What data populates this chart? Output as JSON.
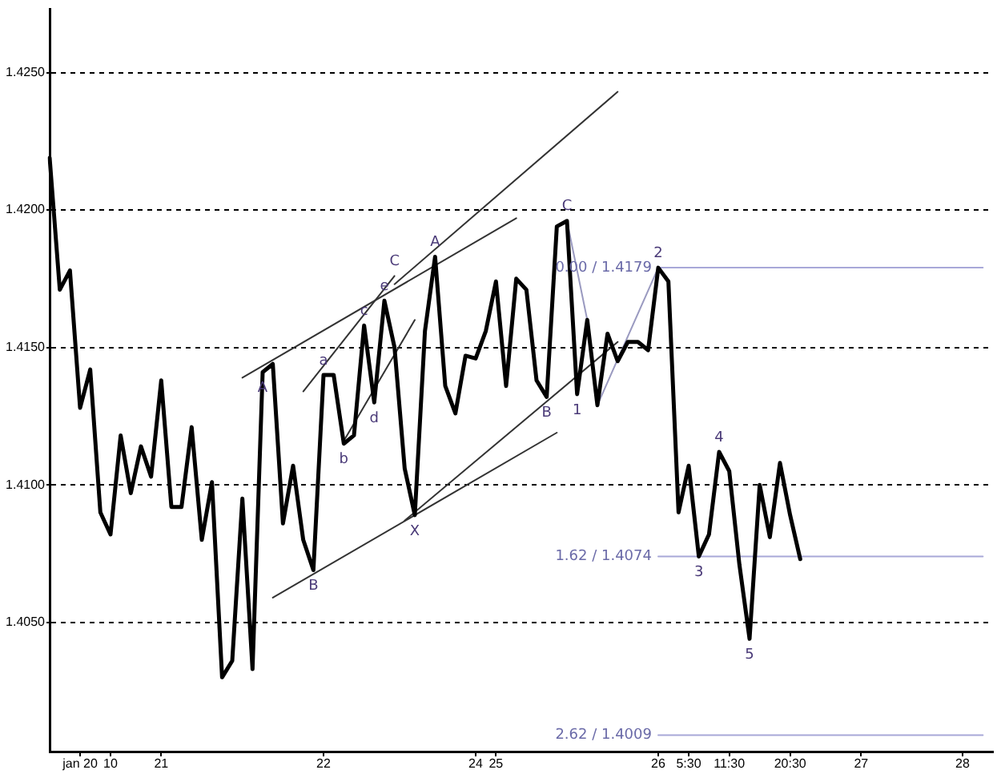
{
  "chart_data": {
    "type": "line",
    "categories": [
      null,
      null,
      null,
      "jan 20",
      null,
      null,
      "10",
      null,
      null,
      null,
      null,
      "21",
      null,
      null,
      null,
      null,
      null,
      null,
      null,
      null,
      null,
      null,
      null,
      null,
      null,
      null,
      null,
      "22",
      null,
      null,
      null,
      null,
      null,
      null,
      null,
      null,
      null,
      null,
      null,
      null,
      null,
      null,
      "24",
      null,
      "25",
      null,
      null,
      null,
      null,
      null,
      null,
      null,
      null,
      null,
      null,
      null,
      null,
      null,
      null,
      null,
      "26",
      null,
      null,
      "5:30",
      null,
      null,
      null,
      "11:30",
      null,
      null,
      null,
      null,
      null,
      "20:30",
      null,
      null,
      null,
      null,
      null,
      null,
      "27",
      null,
      null,
      null,
      null,
      null,
      null,
      null,
      null,
      null,
      "28",
      null,
      null,
      null
    ],
    "series": [
      {
        "color": "#000000",
        "values": [
          1.4219,
          1.4171,
          1.4178,
          1.4128,
          1.4142,
          1.409,
          1.4082,
          1.4118,
          1.4097,
          1.4114,
          1.4103,
          1.4138,
          1.4092,
          1.4092,
          1.4121,
          1.408,
          1.4101,
          1.403,
          1.4036,
          1.4095,
          1.4033,
          1.4141,
          1.4144,
          1.4086,
          1.4107,
          1.408,
          1.4069,
          1.414,
          1.414,
          1.4115,
          1.4118,
          1.4158,
          1.413,
          1.4167,
          1.415,
          1.4106,
          1.4089,
          1.4156,
          1.4183,
          1.4136,
          1.4126,
          1.4147,
          1.4146,
          1.4156,
          1.4174,
          1.4136,
          1.4175,
          1.4171,
          1.4138,
          1.4132,
          1.4194,
          1.4196,
          1.4133,
          1.416,
          1.4129,
          1.4155,
          1.4145,
          1.4152,
          1.4152,
          1.4149,
          1.4179,
          1.4174,
          1.409,
          1.4107,
          1.4074,
          1.4082,
          1.4112,
          1.4105,
          1.4071,
          1.4044,
          1.41,
          1.4081,
          1.4108,
          1.4089,
          1.4073,
          null,
          null,
          null,
          null,
          null,
          null,
          null,
          null,
          null,
          null,
          null,
          null,
          null,
          null,
          null,
          null,
          null,
          null,
          null
        ]
      },
      {
        "type": "line",
        "color": "#333333",
        "values": [
          null,
          null,
          null,
          null,
          null,
          null,
          null,
          null,
          null,
          null,
          null,
          null,
          null,
          null,
          null,
          null,
          null,
          null,
          null,
          1.4139,
          null,
          null,
          null,
          null,
          null,
          null,
          null,
          null,
          null,
          null,
          null,
          null,
          null,
          null,
          null,
          null,
          null,
          null,
          null,
          null,
          null,
          null,
          null,
          null,
          null,
          null,
          1.4197,
          null,
          null,
          null,
          null,
          null,
          null,
          null,
          null,
          null,
          null,
          null,
          null,
          null,
          null,
          null,
          null,
          null,
          null,
          null,
          null,
          null,
          null,
          null,
          null,
          null,
          null,
          null,
          null,
          null,
          null,
          null,
          null,
          null,
          null,
          null,
          null,
          null,
          null,
          null,
          null,
          null,
          null,
          null,
          null,
          null,
          null,
          null
        ]
      },
      {
        "type": "line",
        "color": "#333333",
        "values": [
          null,
          null,
          null,
          null,
          null,
          null,
          null,
          null,
          null,
          null,
          null,
          null,
          null,
          null,
          null,
          null,
          null,
          null,
          null,
          null,
          null,
          null,
          null,
          null,
          null,
          null,
          null,
          null,
          null,
          null,
          null,
          null,
          null,
          null,
          1.4173,
          null,
          null,
          null,
          null,
          null,
          null,
          null,
          null,
          null,
          null,
          null,
          null,
          null,
          null,
          null,
          null,
          null,
          null,
          null,
          null,
          null,
          1.4243,
          null,
          null,
          null,
          null,
          null,
          null,
          null,
          null,
          null,
          null,
          null,
          null,
          null,
          null,
          null,
          null,
          null,
          null,
          null,
          null,
          null,
          null,
          null,
          null,
          null,
          null,
          null,
          null,
          null,
          null,
          null,
          null,
          null,
          null,
          null,
          null,
          null
        ]
      },
      {
        "type": "line",
        "color": "#333333",
        "values": [
          null,
          null,
          null,
          null,
          null,
          null,
          null,
          null,
          null,
          null,
          null,
          null,
          null,
          null,
          null,
          null,
          null,
          null,
          null,
          null,
          null,
          null,
          null,
          null,
          null,
          1.4134,
          null,
          null,
          null,
          null,
          null,
          null,
          null,
          null,
          1.4176,
          null,
          null,
          null,
          null,
          null,
          null,
          null,
          null,
          null,
          null,
          null,
          null,
          null,
          null,
          null,
          null,
          null,
          null,
          null,
          null,
          null,
          null,
          null,
          null,
          null,
          null,
          null,
          null,
          null,
          null,
          null,
          null,
          null,
          null,
          null,
          null,
          null,
          null,
          null,
          null,
          null,
          null,
          null,
          null,
          null,
          null,
          null,
          null,
          null,
          null,
          null,
          null,
          null,
          null,
          null,
          null,
          null,
          null,
          null
        ]
      },
      {
        "type": "line",
        "color": "#333333",
        "values": [
          null,
          null,
          null,
          null,
          null,
          null,
          null,
          null,
          null,
          null,
          null,
          null,
          null,
          null,
          null,
          null,
          null,
          null,
          null,
          null,
          null,
          null,
          null,
          null,
          null,
          null,
          null,
          null,
          null,
          1.4116,
          null,
          null,
          null,
          null,
          null,
          null,
          1.416,
          null,
          null,
          null,
          null,
          null,
          null,
          null,
          null,
          null,
          null,
          null,
          null,
          null,
          null,
          null,
          null,
          null,
          null,
          null,
          null,
          null,
          null,
          null,
          null,
          null,
          null,
          null,
          null,
          null,
          null,
          null,
          null,
          null,
          null,
          null,
          null,
          null,
          null,
          null,
          null,
          null,
          null,
          null,
          null,
          null,
          null,
          null,
          null,
          null,
          null,
          null,
          null,
          null,
          null,
          null,
          null,
          null
        ]
      },
      {
        "type": "line",
        "color": "#333333",
        "values": [
          null,
          null,
          null,
          null,
          null,
          null,
          null,
          null,
          null,
          null,
          null,
          null,
          null,
          null,
          null,
          null,
          null,
          null,
          null,
          null,
          null,
          null,
          1.4059,
          null,
          null,
          null,
          null,
          null,
          null,
          null,
          null,
          null,
          null,
          null,
          null,
          null,
          null,
          null,
          null,
          null,
          null,
          null,
          null,
          null,
          null,
          null,
          null,
          null,
          null,
          null,
          1.4119,
          null,
          null,
          null,
          null,
          null,
          null,
          null,
          null,
          null,
          null,
          null,
          null,
          null,
          null,
          null,
          null,
          null,
          null,
          null,
          null,
          null,
          null,
          null,
          null,
          null,
          null,
          null,
          null,
          null,
          null,
          null,
          null,
          null,
          null,
          null,
          null,
          null,
          null,
          null,
          null,
          null,
          null,
          null
        ]
      },
      {
        "type": "line",
        "color": "#333333",
        "values": [
          null,
          null,
          null,
          null,
          null,
          null,
          null,
          null,
          null,
          null,
          null,
          null,
          null,
          null,
          null,
          null,
          null,
          null,
          null,
          null,
          null,
          null,
          null,
          null,
          null,
          null,
          null,
          null,
          null,
          null,
          null,
          null,
          null,
          null,
          null,
          1.4087,
          null,
          null,
          null,
          null,
          null,
          null,
          null,
          null,
          null,
          null,
          null,
          null,
          null,
          null,
          null,
          null,
          null,
          null,
          null,
          null,
          1.4152,
          null,
          null,
          null,
          null,
          null,
          null,
          null,
          null,
          null,
          null,
          null,
          null,
          null,
          null,
          null,
          null,
          null,
          null,
          null,
          null,
          null,
          null,
          null,
          null,
          null,
          null,
          null,
          null,
          null,
          null,
          null,
          null,
          null,
          null,
          null,
          null,
          null
        ]
      },
      {
        "type": "line",
        "color": "#9a9ac0",
        "values": [
          null,
          null,
          null,
          null,
          null,
          null,
          null,
          null,
          null,
          null,
          null,
          null,
          null,
          null,
          null,
          null,
          null,
          null,
          null,
          null,
          null,
          null,
          null,
          null,
          null,
          null,
          null,
          null,
          null,
          null,
          null,
          null,
          null,
          null,
          null,
          null,
          null,
          null,
          null,
          null,
          null,
          null,
          null,
          null,
          null,
          null,
          null,
          null,
          null,
          null,
          null,
          null,
          null,
          null,
          1.4129,
          null,
          null,
          null,
          null,
          null,
          1.4179,
          null,
          null,
          null,
          null,
          null,
          null,
          null,
          null,
          null,
          null,
          null,
          null,
          null,
          null,
          null,
          null,
          null,
          null,
          null,
          null,
          null,
          null,
          null,
          null,
          null,
          null,
          null,
          null,
          null,
          null,
          null,
          null,
          null
        ]
      },
      {
        "type": "line",
        "color": "#9a9ac0",
        "values": [
          null,
          null,
          null,
          null,
          null,
          null,
          null,
          null,
          null,
          null,
          null,
          null,
          null,
          null,
          null,
          null,
          null,
          null,
          null,
          null,
          null,
          null,
          null,
          null,
          null,
          null,
          null,
          null,
          null,
          null,
          null,
          null,
          null,
          null,
          null,
          null,
          null,
          null,
          null,
          null,
          null,
          null,
          null,
          null,
          null,
          null,
          null,
          null,
          null,
          null,
          null,
          1.4196,
          null,
          1.416,
          null,
          null,
          null,
          null,
          null,
          null,
          null,
          null,
          null,
          null,
          null,
          null,
          null,
          null,
          null,
          null,
          null,
          null,
          null,
          null,
          null,
          null,
          null,
          null,
          null,
          null,
          null,
          null,
          null,
          null,
          null,
          null,
          null,
          null,
          null,
          null,
          null,
          null,
          null,
          null
        ]
      },
      {
        "type": "line",
        "name": "0.00 / 1.4179",
        "color": "#a8a8d8",
        "values": [
          null,
          null,
          null,
          null,
          null,
          null,
          null,
          null,
          null,
          null,
          null,
          null,
          null,
          null,
          null,
          null,
          null,
          null,
          null,
          null,
          null,
          null,
          null,
          null,
          null,
          null,
          null,
          null,
          null,
          null,
          null,
          null,
          null,
          null,
          null,
          null,
          null,
          null,
          null,
          null,
          null,
          null,
          null,
          null,
          null,
          null,
          null,
          null,
          null,
          null,
          null,
          null,
          null,
          null,
          null,
          null,
          null,
          null,
          null,
          null,
          1.4179,
          1.4179,
          1.4179,
          1.4179,
          1.4179,
          1.4179,
          1.4179,
          1.4179,
          1.4179,
          1.4179,
          1.4179,
          1.4179,
          1.4179,
          1.4179,
          1.4179,
          1.4179,
          1.4179,
          1.4179,
          1.4179,
          1.4179,
          1.4179,
          1.4179,
          1.4179,
          1.4179,
          1.4179,
          1.4179,
          1.4179,
          1.4179,
          1.4179,
          1.4179,
          1.4179,
          1.4179,
          1.4179,
          null
        ]
      },
      {
        "type": "line",
        "name": "1.62 / 1.4074",
        "color": "#a8a8d8",
        "values": [
          null,
          null,
          null,
          null,
          null,
          null,
          null,
          null,
          null,
          null,
          null,
          null,
          null,
          null,
          null,
          null,
          null,
          null,
          null,
          null,
          null,
          null,
          null,
          null,
          null,
          null,
          null,
          null,
          null,
          null,
          null,
          null,
          null,
          null,
          null,
          null,
          null,
          null,
          null,
          null,
          null,
          null,
          null,
          null,
          null,
          null,
          null,
          null,
          null,
          null,
          null,
          null,
          null,
          null,
          null,
          null,
          null,
          null,
          null,
          null,
          1.4074,
          1.4074,
          1.4074,
          1.4074,
          1.4074,
          1.4074,
          1.4074,
          1.4074,
          1.4074,
          1.4074,
          1.4074,
          1.4074,
          1.4074,
          1.4074,
          1.4074,
          1.4074,
          1.4074,
          1.4074,
          1.4074,
          1.4074,
          1.4074,
          1.4074,
          1.4074,
          1.4074,
          1.4074,
          1.4074,
          1.4074,
          1.4074,
          1.4074,
          1.4074,
          1.4074,
          1.4074,
          1.4074,
          null
        ]
      },
      {
        "type": "line",
        "name": "2.62 / 1.4009",
        "color": "#a8a8d8",
        "values": [
          null,
          null,
          null,
          null,
          null,
          null,
          null,
          null,
          null,
          null,
          null,
          null,
          null,
          null,
          null,
          null,
          null,
          null,
          null,
          null,
          null,
          null,
          null,
          null,
          null,
          null,
          null,
          null,
          null,
          null,
          null,
          null,
          null,
          null,
          null,
          null,
          null,
          null,
          null,
          null,
          null,
          null,
          null,
          null,
          null,
          null,
          null,
          null,
          null,
          null,
          null,
          null,
          null,
          null,
          null,
          null,
          null,
          null,
          null,
          null,
          1.4009,
          1.4009,
          1.4009,
          1.4009,
          1.4009,
          1.4009,
          1.4009,
          1.4009,
          1.4009,
          1.4009,
          1.4009,
          1.4009,
          1.4009,
          1.4009,
          1.4009,
          1.4009,
          1.4009,
          1.4009,
          1.4009,
          1.4009,
          1.4009,
          1.4009,
          1.4009,
          1.4009,
          1.4009,
          1.4009,
          1.4009,
          1.4009,
          1.4009,
          1.4009,
          1.4009,
          1.4009,
          1.4009,
          null
        ]
      }
    ],
    "ylim": [
      1.4003,
      1.4273
    ],
    "yticks": [
      {
        "value": 1.405,
        "label": "1.4050"
      },
      {
        "value": 1.41,
        "label": "1.4100"
      },
      {
        "value": 1.415,
        "label": "1.4150"
      },
      {
        "value": 1.42,
        "label": "1.4200"
      },
      {
        "value": 1.425,
        "label": "1.4250"
      }
    ],
    "grid": "y",
    "annotations": [
      {
        "text": "A",
        "y": 1.4141
      },
      {
        "text": "B",
        "y": 1.4069
      },
      {
        "text": "a",
        "y": 1.414
      },
      {
        "text": "b",
        "y": 1.4115
      },
      {
        "text": "c",
        "y": 1.4158
      },
      {
        "text": "d",
        "y": 1.413
      },
      {
        "text": "e",
        "y": 1.4167
      },
      {
        "text": "C",
        "y": 1.4176
      },
      {
        "text": "X",
        "y": 1.4089
      },
      {
        "text": "A",
        "y": 1.4183
      },
      {
        "text": "B",
        "y": 1.4132
      },
      {
        "text": "C",
        "y": 1.4196
      },
      {
        "text": "1",
        "y": 1.4133
      },
      {
        "text": "2",
        "y": 1.4179
      },
      {
        "text": "3",
        "y": 1.4074
      },
      {
        "text": "4",
        "y": 1.4112
      },
      {
        "text": "5",
        "y": 1.4044
      }
    ]
  }
}
